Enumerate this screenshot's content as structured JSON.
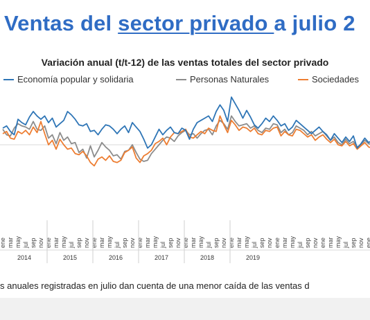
{
  "header": {
    "part1": "Ventas del ",
    "part2": "sector privado ",
    "part3": "a julio 2"
  },
  "caption": "s anuales registradas en julio dan cuenta de una menor caída de las ventas d",
  "chart_data": {
    "type": "line",
    "title": "Variación anual (t/t-12) de las ventas totales del sector privado",
    "xlabel": "",
    "ylabel": "",
    "grid": false,
    "legend_position": "top",
    "year_labels": [
      "2014",
      "2015",
      "2016",
      "2017",
      "2018",
      "2019"
    ],
    "month_labels": [
      "ene",
      "mar",
      "may",
      "jul",
      "sep",
      "nov"
    ],
    "series": [
      {
        "name": "Economía popular y solidaria",
        "color": "#2e75b6",
        "values": [
          1.5,
          1.7,
          1.2,
          0.9,
          2.3,
          2.0,
          1.8,
          2.5,
          3.0,
          2.6,
          2.3,
          2.6,
          2.0,
          2.4,
          1.6,
          1.9,
          2.2,
          3.0,
          2.7,
          2.3,
          1.8,
          1.7,
          1.9,
          1.2,
          1.3,
          0.9,
          1.4,
          1.8,
          1.7,
          1.4,
          1.0,
          1.4,
          1.7,
          1.1,
          2.0,
          1.6,
          1.2,
          0.5,
          -0.3,
          0.0,
          0.7,
          1.4,
          0.9,
          1.3,
          1.6,
          1.1,
          1.0,
          1.5,
          1.3,
          0.5,
          1.4,
          2.0,
          2.2,
          2.4,
          2.6,
          2.1,
          3.0,
          3.6,
          3.1,
          2.1,
          4.3,
          3.7,
          3.1,
          2.4,
          3.1,
          2.5,
          1.8,
          1.5,
          1.9,
          2.4,
          2.1,
          2.6,
          2.2,
          1.7,
          1.9,
          1.3,
          1.6,
          2.2,
          1.9,
          1.6,
          1.3,
          1.0,
          1.3,
          1.6,
          1.2,
          0.9,
          0.4,
          1.0,
          0.6,
          0.2,
          0.7,
          0.3,
          0.8,
          -0.3,
          0.1,
          0.6,
          0.2,
          0.4,
          0.5
        ]
      },
      {
        "name": "Personas Naturales",
        "color": "#8c8c8c",
        "values": [
          1.4,
          0.9,
          0.8,
          1.5,
          1.9,
          1.7,
          1.6,
          1.4,
          2.1,
          1.4,
          1.3,
          1.7,
          0.6,
          0.9,
          0.1,
          1.1,
          0.4,
          0.7,
          0.1,
          0.2,
          -0.7,
          -0.4,
          -1.2,
          -0.1,
          -1.1,
          -0.5,
          0.2,
          -0.2,
          -0.5,
          -1.0,
          -0.9,
          -1.3,
          -0.6,
          -0.5,
          0.0,
          -0.7,
          -1.3,
          -1.5,
          -1.4,
          -0.8,
          -0.4,
          0.0,
          0.4,
          0.7,
          0.6,
          0.3,
          0.8,
          1.1,
          1.3,
          0.9,
          1.0,
          0.6,
          1.0,
          1.3,
          1.4,
          0.9,
          1.7,
          2.2,
          1.9,
          1.4,
          2.6,
          2.1,
          1.7,
          1.8,
          1.9,
          1.5,
          1.7,
          1.3,
          1.1,
          1.5,
          1.4,
          1.9,
          1.8,
          1.1,
          1.4,
          0.9,
          1.1,
          1.7,
          1.5,
          1.3,
          0.9,
          1.2,
          0.8,
          1.0,
          1.2,
          0.8,
          0.4,
          0.7,
          0.2,
          0.0,
          0.5,
          0.1,
          0.3,
          -0.2,
          0.0,
          0.4,
          0.1,
          0.0,
          -0.2
        ]
      },
      {
        "name": "Sociedades",
        "color": "#ed7d31",
        "values": [
          1.0,
          1.2,
          0.6,
          0.5,
          1.2,
          1.0,
          1.3,
          0.9,
          1.6,
          1.1,
          2.1,
          1.0,
          0.0,
          0.4,
          -0.4,
          0.5,
          0.0,
          -0.4,
          -0.3,
          -0.8,
          -0.9,
          -0.6,
          -1.0,
          -1.6,
          -1.9,
          -1.3,
          -1.1,
          -1.4,
          -1.0,
          -1.5,
          -1.6,
          -1.4,
          -0.7,
          -0.5,
          -0.2,
          -1.2,
          -1.6,
          -1.0,
          -0.8,
          -0.5,
          0.1,
          0.3,
          0.6,
          0.0,
          0.7,
          1.1,
          1.0,
          1.2,
          1.4,
          0.7,
          0.6,
          0.9,
          1.2,
          1.0,
          1.5,
          1.3,
          1.2,
          2.6,
          1.8,
          1.1,
          2.2,
          1.8,
          1.3,
          1.6,
          1.5,
          1.2,
          1.5,
          1.0,
          0.9,
          1.3,
          1.2,
          1.5,
          1.6,
          0.8,
          1.2,
          0.9,
          0.8,
          1.4,
          1.3,
          1.0,
          0.7,
          0.9,
          0.4,
          0.7,
          0.9,
          0.5,
          0.2,
          0.5,
          0.0,
          -0.1,
          0.3,
          -0.1,
          0.1,
          -0.4,
          -0.1,
          0.2,
          -0.2,
          -0.3,
          -0.5
        ]
      }
    ]
  }
}
